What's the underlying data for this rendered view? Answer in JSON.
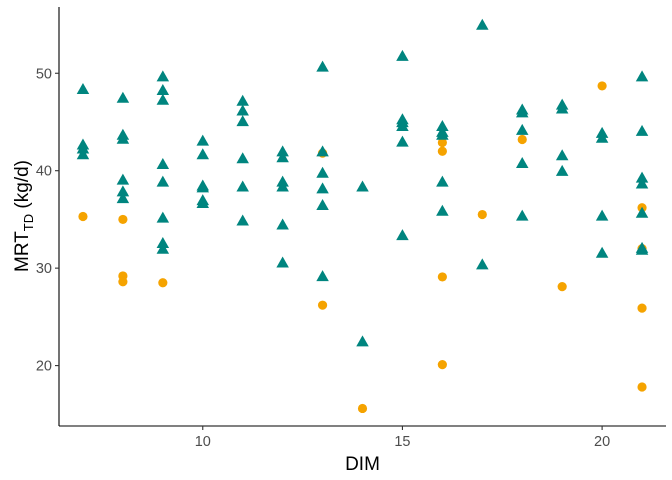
{
  "chart_data": {
    "type": "scatter",
    "xlabel": "DIM",
    "ylabel": {
      "main": "MRT",
      "sub": "TD",
      "unit": " (kg/d)"
    },
    "xlim": [
      6.4,
      21.6
    ],
    "ylim": [
      13.8,
      56.8
    ],
    "x_ticks": [
      10,
      15,
      20
    ],
    "y_ticks": [
      20,
      30,
      40,
      50
    ],
    "grid": false,
    "legend": "none",
    "series": [
      {
        "marker": "circle",
        "color": "#F5A300",
        "points": [
          [
            7,
            35.3
          ],
          [
            8,
            35.0
          ],
          [
            8,
            29.2
          ],
          [
            8,
            28.6
          ],
          [
            9,
            28.5
          ],
          [
            13,
            41.8
          ],
          [
            13,
            26.2
          ],
          [
            14,
            15.6
          ],
          [
            16,
            42.9
          ],
          [
            16,
            42.0
          ],
          [
            16,
            29.1
          ],
          [
            16,
            20.1
          ],
          [
            17,
            35.5
          ],
          [
            18,
            43.2
          ],
          [
            19,
            28.1
          ],
          [
            20,
            48.7
          ],
          [
            21,
            36.2
          ],
          [
            21,
            32.0
          ],
          [
            21,
            25.9
          ],
          [
            21,
            17.8
          ]
        ]
      },
      {
        "marker": "triangle",
        "color": "#00857F",
        "points": [
          [
            7,
            48.3
          ],
          [
            7,
            42.6
          ],
          [
            7,
            42.2
          ],
          [
            7,
            41.6
          ],
          [
            8,
            47.4
          ],
          [
            8,
            43.6
          ],
          [
            8,
            43.2
          ],
          [
            8,
            39.0
          ],
          [
            8,
            37.8
          ],
          [
            8,
            37.1
          ],
          [
            9,
            49.6
          ],
          [
            9,
            48.2
          ],
          [
            9,
            47.2
          ],
          [
            9,
            40.6
          ],
          [
            9,
            38.8
          ],
          [
            9,
            35.1
          ],
          [
            9,
            32.5
          ],
          [
            9,
            31.9
          ],
          [
            10,
            43.0
          ],
          [
            10,
            41.6
          ],
          [
            10,
            38.4
          ],
          [
            10,
            38.2
          ],
          [
            10,
            36.9
          ],
          [
            10,
            36.6
          ],
          [
            11,
            47.1
          ],
          [
            11,
            46.1
          ],
          [
            11,
            45.0
          ],
          [
            11,
            41.2
          ],
          [
            11,
            38.3
          ],
          [
            11,
            34.8
          ],
          [
            12,
            41.9
          ],
          [
            12,
            41.3
          ],
          [
            12,
            38.8
          ],
          [
            12,
            38.3
          ],
          [
            12,
            34.4
          ],
          [
            12,
            30.5
          ],
          [
            13,
            50.6
          ],
          [
            13,
            41.9
          ],
          [
            13,
            39.7
          ],
          [
            13,
            38.1
          ],
          [
            13,
            36.4
          ],
          [
            13,
            29.1
          ],
          [
            14,
            38.3
          ],
          [
            14,
            22.4
          ],
          [
            15,
            51.7
          ],
          [
            15,
            45.2
          ],
          [
            15,
            44.9
          ],
          [
            15,
            44.5
          ],
          [
            15,
            42.9
          ],
          [
            15,
            33.3
          ],
          [
            16,
            44.5
          ],
          [
            16,
            43.9
          ],
          [
            16,
            43.6
          ],
          [
            16,
            38.8
          ],
          [
            16,
            35.8
          ],
          [
            17,
            54.9
          ],
          [
            17,
            30.3
          ],
          [
            18,
            46.2
          ],
          [
            18,
            45.9
          ],
          [
            18,
            44.1
          ],
          [
            18,
            40.7
          ],
          [
            18,
            35.3
          ],
          [
            19,
            46.7
          ],
          [
            19,
            46.3
          ],
          [
            19,
            41.5
          ],
          [
            19,
            39.9
          ],
          [
            20,
            43.8
          ],
          [
            20,
            43.3
          ],
          [
            20,
            35.3
          ],
          [
            20,
            31.5
          ],
          [
            21,
            49.6
          ],
          [
            21,
            44.0
          ],
          [
            21,
            39.2
          ],
          [
            21,
            38.6
          ],
          [
            21,
            35.6
          ],
          [
            21,
            32.0
          ],
          [
            21,
            31.8
          ]
        ]
      }
    ]
  }
}
